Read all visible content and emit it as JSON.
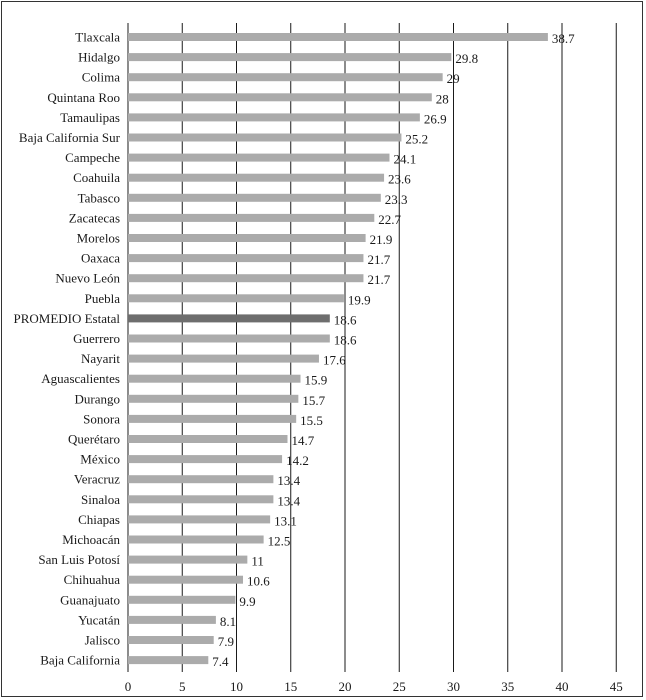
{
  "chart_data": {
    "type": "bar",
    "orientation": "horizontal",
    "categories": [
      "Tlaxcala",
      "Hidalgo",
      "Colima",
      "Quintana Roo",
      "Tamaulipas",
      "Baja California Sur",
      "Campeche",
      "Coahuila",
      "Tabasco",
      "Zacatecas",
      "Morelos",
      "Oaxaca",
      "Nuevo León",
      "Puebla",
      "PROMEDIO Estatal",
      "Guerrero",
      "Nayarit",
      "Aguascalientes",
      "Durango",
      "Sonora",
      "Querétaro",
      "México",
      "Veracruz",
      "Sinaloa",
      "Chiapas",
      "Michoacán",
      "San Luis Potosí",
      "Chihuahua",
      "Guanajuato",
      "Yucatán",
      "Jalisco",
      "Baja California"
    ],
    "values": [
      38.7,
      29.8,
      29,
      28,
      26.9,
      25.2,
      24.1,
      23.6,
      23.3,
      22.7,
      21.9,
      21.7,
      21.7,
      19.9,
      18.6,
      18.6,
      17.6,
      15.9,
      15.7,
      15.5,
      14.7,
      14.2,
      13.4,
      13.4,
      13.1,
      12.5,
      11,
      10.6,
      9.9,
      8.1,
      7.9,
      7.4
    ],
    "value_labels": [
      "38.7",
      "29.8",
      "29",
      "28",
      "26.9",
      "25.2",
      "24.1",
      "23.6",
      "23.3",
      "22.7",
      "21.9",
      "21.7",
      "21.7",
      "19.9",
      "18.6",
      "18.6",
      "17.6",
      "15.9",
      "15.7",
      "15.5",
      "14.7",
      "14.2",
      "13.4",
      "13.4",
      "13.1",
      "12.5",
      "11",
      "10.6",
      "9.9",
      "8.1",
      "7.9",
      "7.4"
    ],
    "highlight": "PROMEDIO Estatal",
    "xlim": [
      0,
      45
    ],
    "xticks": [
      0,
      5,
      10,
      15,
      20,
      25,
      30,
      35,
      40,
      45
    ],
    "grid": true,
    "colors": {
      "bar": "#ababab",
      "highlight": "#6e6e6e",
      "grid": "#1a1a1a"
    }
  }
}
